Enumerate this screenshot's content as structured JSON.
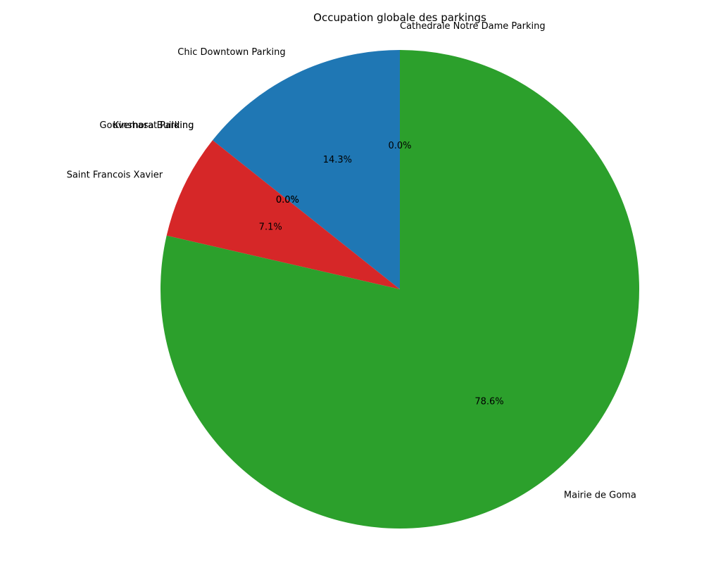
{
  "chart_data": {
    "type": "pie",
    "title": "Occupation globale des parkings",
    "start_angle_deg": 90,
    "direction": "counterclockwise",
    "slices": [
      {
        "label": "Cathedrale Notre Dame Parking",
        "value": 0.0,
        "pct_label": "0.0%",
        "color": "#ff7f0e"
      },
      {
        "label": "Chic Downtown Parking",
        "value": 14.3,
        "pct_label": "14.3%",
        "color": "#1f77b4"
      },
      {
        "label": "Gouvernorat Parking",
        "value": 0.0,
        "pct_label": "0.0%",
        "color": "#8c564b"
      },
      {
        "label": "Kinshasa Building",
        "value": 0.0,
        "pct_label": "0.0%",
        "color": "#9467bd"
      },
      {
        "label": "Saint Francois Xavier",
        "value": 7.1,
        "pct_label": "7.1%",
        "color": "#d62728"
      },
      {
        "label": "Mairie de Goma",
        "value": 78.6,
        "pct_label": "78.6%",
        "color": "#2ca02c"
      }
    ]
  }
}
